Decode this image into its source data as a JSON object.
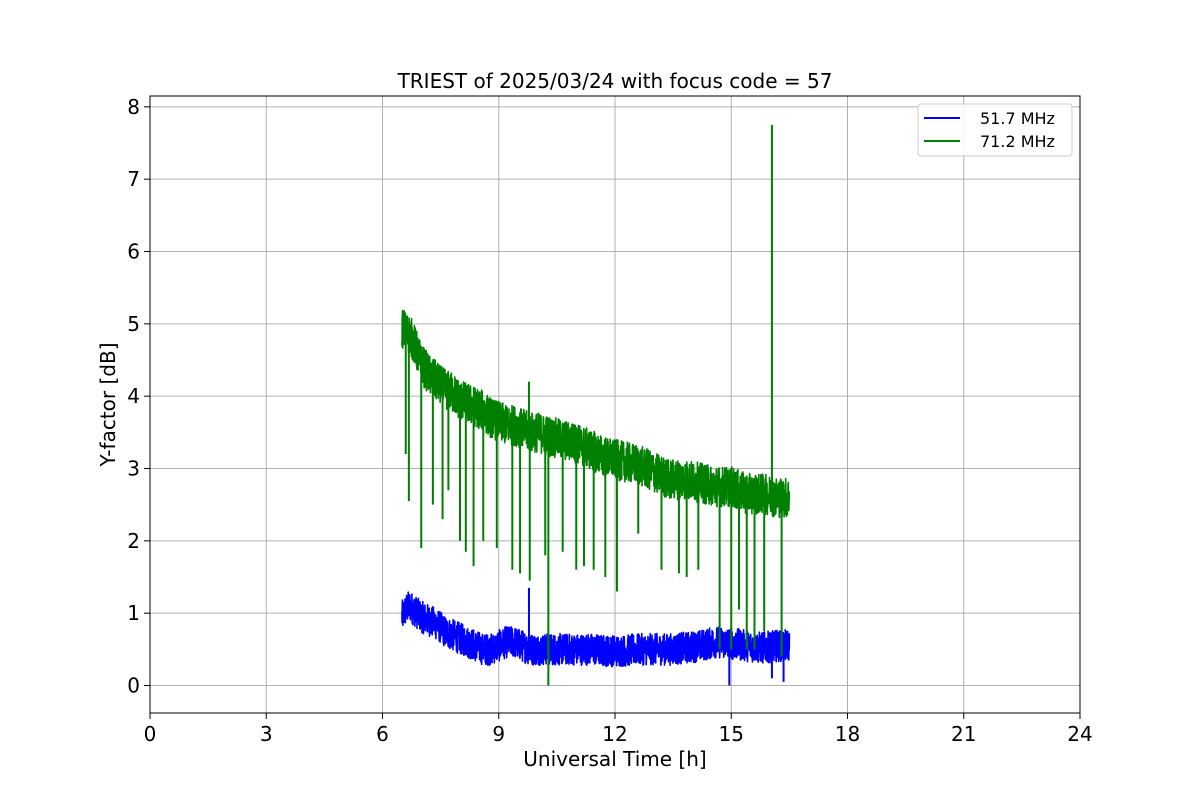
{
  "chart_data": {
    "type": "line",
    "title": "TRIEST of 2025/03/24 with focus code = 57",
    "xlabel": "Universal Time [h]",
    "ylabel": "Y-factor [dB]",
    "xlim": [
      0,
      24
    ],
    "ylim": [
      -0.38,
      8.15
    ],
    "xticks": [
      0,
      3,
      6,
      9,
      12,
      15,
      18,
      21,
      24
    ],
    "yticks": [
      0,
      1,
      2,
      3,
      4,
      5,
      6,
      7,
      8
    ],
    "grid": true,
    "legend_position": "top-right",
    "series": [
      {
        "name": "51.7 MHz",
        "color": "#0000ff",
        "x": [
          6.5,
          6.6,
          6.7,
          6.8,
          6.9,
          7.0,
          7.2,
          7.4,
          7.6,
          7.8,
          8.0,
          8.2,
          8.4,
          8.6,
          8.8,
          9.0,
          9.2,
          9.4,
          9.6,
          9.8,
          10.0,
          10.3,
          10.6,
          11.0,
          11.4,
          11.8,
          12.2,
          12.6,
          13.0,
          13.4,
          13.8,
          14.2,
          14.6,
          15.0,
          15.4,
          15.8,
          16.2,
          16.5
        ],
        "y": [
          0.95,
          1.05,
          1.1,
          1.05,
          1.0,
          0.95,
          0.9,
          0.85,
          0.75,
          0.7,
          0.65,
          0.6,
          0.55,
          0.5,
          0.5,
          0.55,
          0.6,
          0.6,
          0.55,
          0.5,
          0.5,
          0.5,
          0.5,
          0.5,
          0.5,
          0.48,
          0.48,
          0.5,
          0.5,
          0.5,
          0.52,
          0.55,
          0.6,
          0.58,
          0.55,
          0.52,
          0.55,
          0.55
        ],
        "spikes": [
          {
            "x": 9.78,
            "y": 1.35
          },
          {
            "x": 14.95,
            "y": 0.0
          },
          {
            "x": 16.05,
            "y": 0.1
          },
          {
            "x": 16.35,
            "y": 0.05
          }
        ]
      },
      {
        "name": "71.2 MHz",
        "color": "#008000",
        "x": [
          6.5,
          6.6,
          6.7,
          6.8,
          6.9,
          7.0,
          7.2,
          7.4,
          7.6,
          7.8,
          8.0,
          8.2,
          8.4,
          8.6,
          8.8,
          9.0,
          9.2,
          9.4,
          9.6,
          9.8,
          10.0,
          10.3,
          10.6,
          11.0,
          11.4,
          11.8,
          12.2,
          12.6,
          13.0,
          13.4,
          13.8,
          14.2,
          14.6,
          15.0,
          15.4,
          15.8,
          16.2,
          16.5
        ],
        "y": [
          4.95,
          4.9,
          4.85,
          4.75,
          4.6,
          4.45,
          4.3,
          4.2,
          4.1,
          4.05,
          3.95,
          3.9,
          3.85,
          3.8,
          3.7,
          3.65,
          3.6,
          3.6,
          3.55,
          3.5,
          3.5,
          3.45,
          3.4,
          3.35,
          3.25,
          3.15,
          3.1,
          3.05,
          2.95,
          2.85,
          2.85,
          2.8,
          2.75,
          2.75,
          2.65,
          2.65,
          2.6,
          2.6
        ],
        "spikes": [
          {
            "x": 6.6,
            "y": 3.2
          },
          {
            "x": 6.68,
            "y": 2.55
          },
          {
            "x": 7.0,
            "y": 1.9
          },
          {
            "x": 7.3,
            "y": 2.5
          },
          {
            "x": 7.55,
            "y": 2.3
          },
          {
            "x": 7.7,
            "y": 2.7
          },
          {
            "x": 8.0,
            "y": 2.0
          },
          {
            "x": 8.15,
            "y": 1.85
          },
          {
            "x": 8.35,
            "y": 1.65
          },
          {
            "x": 8.6,
            "y": 2.0
          },
          {
            "x": 8.95,
            "y": 1.9
          },
          {
            "x": 9.35,
            "y": 1.6
          },
          {
            "x": 9.55,
            "y": 1.55
          },
          {
            "x": 9.8,
            "y": 1.45
          },
          {
            "x": 10.2,
            "y": 1.8
          },
          {
            "x": 10.28,
            "y": 0.0
          },
          {
            "x": 10.65,
            "y": 1.85
          },
          {
            "x": 11.0,
            "y": 1.6
          },
          {
            "x": 11.2,
            "y": 1.65
          },
          {
            "x": 11.45,
            "y": 1.6
          },
          {
            "x": 11.75,
            "y": 1.5
          },
          {
            "x": 12.05,
            "y": 1.3
          },
          {
            "x": 12.6,
            "y": 2.1
          },
          {
            "x": 13.2,
            "y": 1.6
          },
          {
            "x": 13.65,
            "y": 1.55
          },
          {
            "x": 13.85,
            "y": 1.5
          },
          {
            "x": 14.15,
            "y": 1.6
          },
          {
            "x": 14.7,
            "y": 0.5
          },
          {
            "x": 15.0,
            "y": 0.5
          },
          {
            "x": 15.2,
            "y": 1.05
          },
          {
            "x": 15.4,
            "y": 0.5
          },
          {
            "x": 15.6,
            "y": 0.5
          },
          {
            "x": 15.85,
            "y": 0.75
          },
          {
            "x": 16.3,
            "y": 0.4
          }
        ],
        "peaks": [
          {
            "x": 9.78,
            "y": 4.2
          },
          {
            "x": 12.5,
            "y": 3.0
          },
          {
            "x": 16.05,
            "y": 7.75
          }
        ]
      }
    ]
  }
}
